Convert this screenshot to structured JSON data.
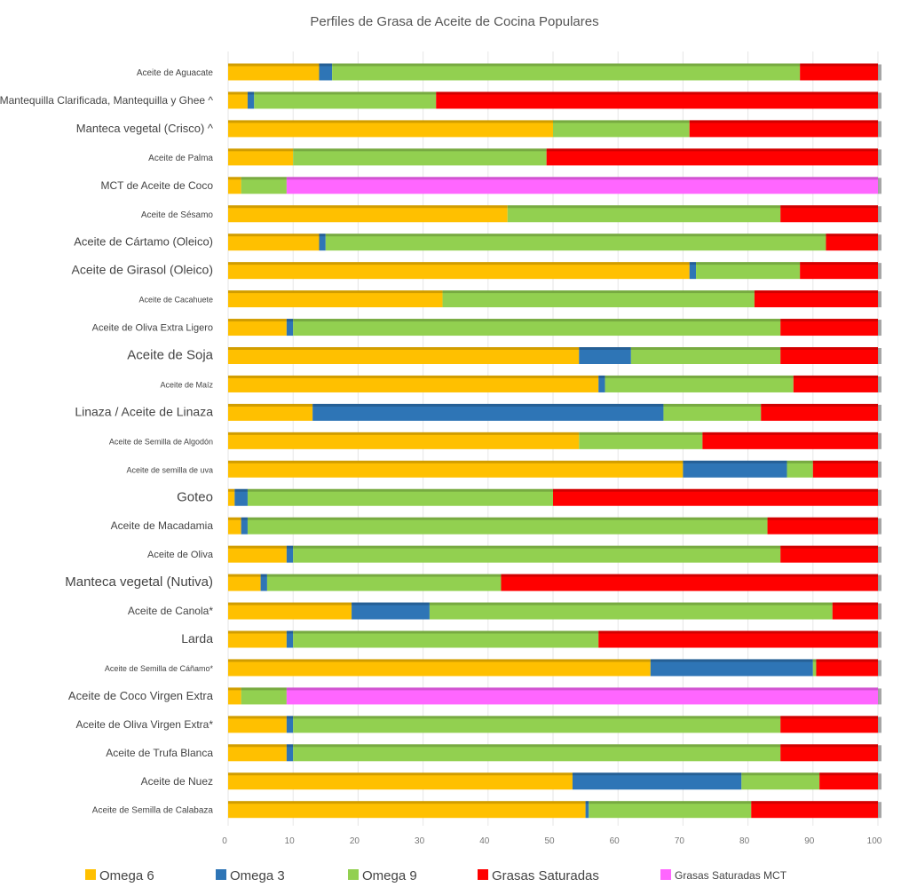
{
  "chart_data": {
    "type": "bar",
    "orientation": "horizontal",
    "stacked": true,
    "title": "Perfiles de Grasa de Aceite de Cocina Populares",
    "xlim": [
      0,
      100
    ],
    "xticks": [
      "0",
      "10",
      "20",
      "30",
      "40",
      "50",
      "60",
      "70",
      "80",
      "90",
      "100"
    ],
    "grid": true,
    "legend_position": "bottom",
    "categories": [
      "Aceite de Aguacate",
      "Mantequilla Clarificada, Mantequilla y Ghee ^",
      "Manteca vegetal (Crisco) ^",
      "Aceite de Palma",
      "MCT de Aceite de Coco",
      "Aceite de Sésamo",
      "Aceite de Cártamo (Oleico)",
      "Aceite de Girasol (Oleico)",
      "Aceite de Cacahuete",
      "Aceite de Oliva Extra Ligero",
      "Aceite de Soja",
      "Aceite de Maíz",
      "Linaza / Aceite de Linaza",
      "Aceite de Semilla de Algodón",
      "Aceite de semilla de uva",
      "Goteo",
      "Aceite de Macadamia",
      "Aceite de Oliva",
      "Manteca vegetal (Nutiva)",
      "Aceite de Canola*",
      "Larda",
      "Aceite de Semilla de Cáñamo*",
      "Aceite de Coco Virgen Extra",
      "Aceite de Oliva Virgen Extra*",
      "Aceite de Trufa Blanca",
      "Aceite de Nuez",
      "Aceite de Semilla de Calabaza"
    ],
    "series": [
      {
        "name": "Omega 6",
        "color": "#FFC000",
        "values": [
          14,
          3,
          50,
          10,
          2,
          43,
          14,
          71,
          33,
          9,
          54,
          57,
          13,
          54,
          70,
          1,
          2,
          9,
          5,
          19,
          9,
          65,
          2,
          9,
          9,
          53,
          55
        ]
      },
      {
        "name": "Omega 3",
        "color": "#2E75B6",
        "values": [
          2,
          1,
          0,
          0,
          0,
          0,
          1,
          1,
          0,
          1,
          8,
          1,
          54,
          0,
          16,
          2,
          1,
          1,
          1,
          12,
          1,
          25,
          0,
          1,
          1,
          26,
          0.5
        ]
      },
      {
        "name": "Omega 9",
        "color": "#92D050",
        "values": [
          72,
          28,
          21,
          39,
          7,
          42,
          77,
          16,
          48,
          75,
          23,
          29,
          15,
          19,
          4,
          47,
          80,
          75,
          36,
          62,
          47,
          0.5,
          7,
          75,
          75,
          12,
          25
        ]
      },
      {
        "name": "Grasas Saturadas",
        "color": "#FF0000",
        "values": [
          12,
          68,
          29,
          51,
          0,
          15,
          8,
          12,
          19,
          15,
          15,
          13,
          18,
          27,
          10,
          50,
          17,
          15,
          58,
          7,
          43,
          9.5,
          0,
          15,
          15,
          9,
          19.5
        ]
      },
      {
        "name": "Grasas Saturadas MCT",
        "color": "#FF66FF",
        "values": [
          0,
          0,
          0,
          0,
          91,
          0,
          0,
          0,
          0,
          0,
          0,
          0,
          0,
          0,
          0,
          0,
          0,
          0,
          0,
          0,
          0,
          0,
          91,
          0,
          0,
          0,
          0
        ]
      }
    ]
  }
}
